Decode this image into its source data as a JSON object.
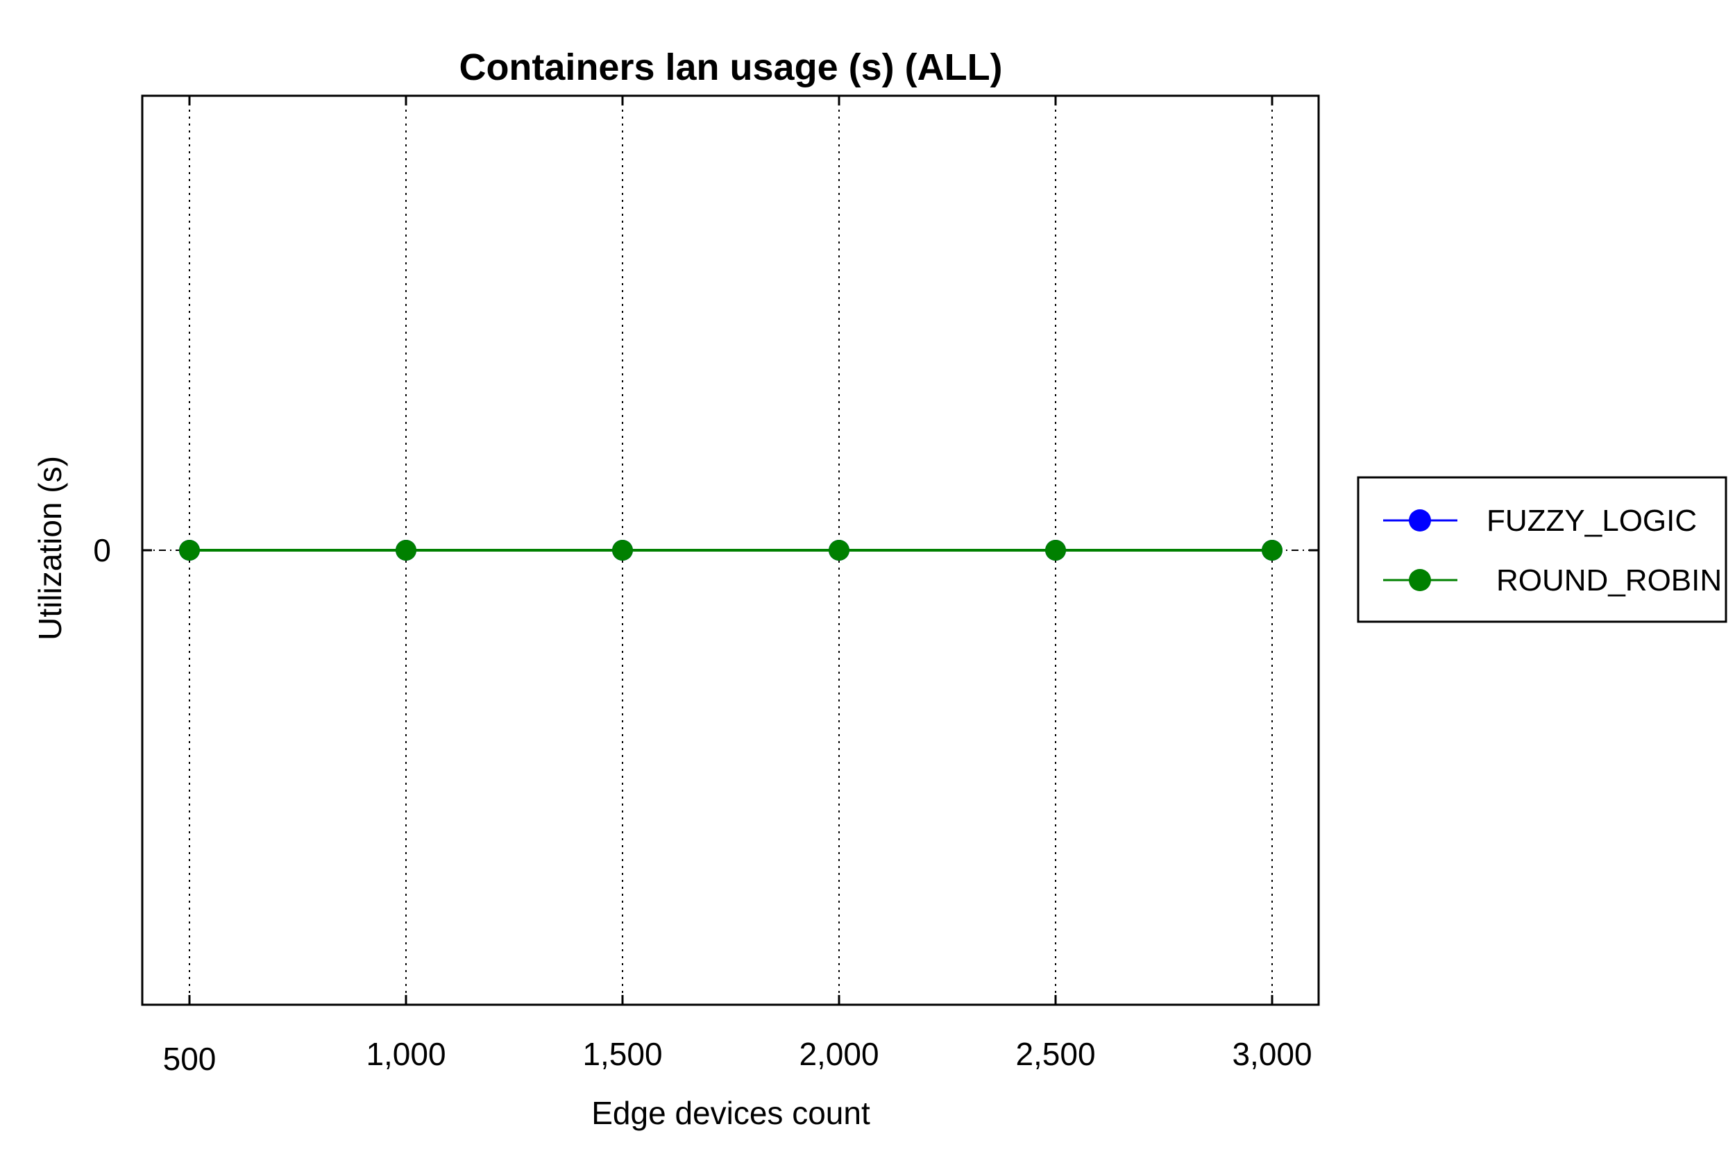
{
  "chart_data": {
    "type": "line",
    "title": "Containers lan usage (s) (ALL)",
    "xlabel": "Edge devices count",
    "ylabel": "Utilization (s)",
    "x": [
      500,
      1000,
      1500,
      2000,
      2500,
      3000
    ],
    "x_tick_labels": [
      "500",
      "1,000",
      "1,500",
      "2,000",
      "2,500",
      "3,000"
    ],
    "y_tick_labels": [
      "0"
    ],
    "y_ticks": [
      0
    ],
    "xlim": [
      275,
      3000
    ],
    "ylim": [
      -1,
      1
    ],
    "grid": "vertical dotted",
    "legend_position": "right",
    "series": [
      {
        "name": "FUZZY_LOGIC",
        "color": "#0000ff",
        "marker": "circle",
        "values": [
          0,
          0,
          0,
          0,
          0,
          0
        ]
      },
      {
        "name": "ROUND_ROBIN",
        "color": "#008000",
        "marker": "circle",
        "values": [
          0,
          0,
          0,
          0,
          0,
          0
        ]
      }
    ]
  }
}
